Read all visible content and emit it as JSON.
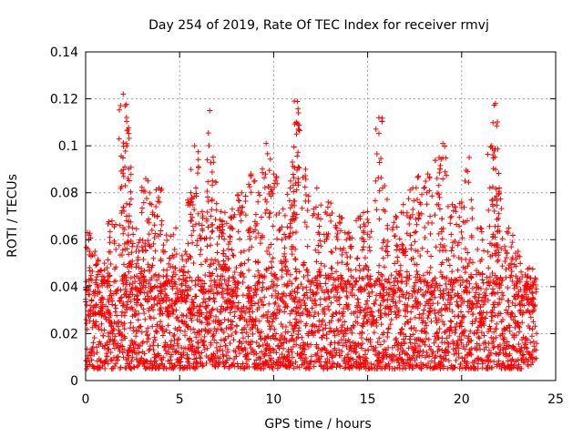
{
  "chart_data": {
    "type": "scatter",
    "title": "Day 254 of 2019, Rate Of TEC Index for receiver rmvj",
    "xlabel": "GPS time / hours",
    "ylabel": "ROTI / TECUs",
    "xlim": [
      0,
      25
    ],
    "ylim": [
      0,
      0.14
    ],
    "grid": true,
    "marker": "+",
    "color": "#ff0000",
    "x_ticks": [
      {
        "value": 0,
        "label": "0"
      },
      {
        "value": 5,
        "label": "5"
      },
      {
        "value": 10,
        "label": "10"
      },
      {
        "value": 15,
        "label": "15"
      },
      {
        "value": 20,
        "label": "20"
      },
      {
        "value": 25,
        "label": "25"
      }
    ],
    "y_ticks": [
      {
        "value": 0,
        "label": "0"
      },
      {
        "value": 0.02,
        "label": "0.02"
      },
      {
        "value": 0.04,
        "label": "0.04"
      },
      {
        "value": 0.06,
        "label": "0.06"
      },
      {
        "value": 0.08,
        "label": "0.08"
      },
      {
        "value": 0.1,
        "label": "0.1"
      },
      {
        "value": 0.12,
        "label": "0.12"
      },
      {
        "value": 0.14,
        "label": "0.14"
      }
    ],
    "series": [
      {
        "name": "ROTI",
        "x_range": [
          0,
          24
        ],
        "baseline_band": [
          0.005,
          0.045
        ],
        "peaks": [
          {
            "x": 0.1,
            "y": 0.063
          },
          {
            "x": 0.5,
            "y": 0.055
          },
          {
            "x": 1.0,
            "y": 0.05
          },
          {
            "x": 1.4,
            "y": 0.068
          },
          {
            "x": 2.0,
            "y": 0.122
          },
          {
            "x": 2.1,
            "y": 0.117
          },
          {
            "x": 2.2,
            "y": 0.1
          },
          {
            "x": 2.5,
            "y": 0.065
          },
          {
            "x": 2.9,
            "y": 0.06
          },
          {
            "x": 3.2,
            "y": 0.086
          },
          {
            "x": 3.5,
            "y": 0.075
          },
          {
            "x": 3.9,
            "y": 0.082
          },
          {
            "x": 4.3,
            "y": 0.062
          },
          {
            "x": 4.8,
            "y": 0.065
          },
          {
            "x": 5.3,
            "y": 0.055
          },
          {
            "x": 5.6,
            "y": 0.08
          },
          {
            "x": 5.8,
            "y": 0.1
          },
          {
            "x": 6.2,
            "y": 0.072
          },
          {
            "x": 6.6,
            "y": 0.115
          },
          {
            "x": 6.8,
            "y": 0.093
          },
          {
            "x": 7.2,
            "y": 0.072
          },
          {
            "x": 7.5,
            "y": 0.067
          },
          {
            "x": 7.8,
            "y": 0.073
          },
          {
            "x": 8.3,
            "y": 0.08
          },
          {
            "x": 8.8,
            "y": 0.088
          },
          {
            "x": 9.2,
            "y": 0.08
          },
          {
            "x": 9.6,
            "y": 0.101
          },
          {
            "x": 10.0,
            "y": 0.088
          },
          {
            "x": 10.5,
            "y": 0.073
          },
          {
            "x": 10.9,
            "y": 0.085
          },
          {
            "x": 11.1,
            "y": 0.119
          },
          {
            "x": 11.2,
            "y": 0.11
          },
          {
            "x": 11.7,
            "y": 0.09
          },
          {
            "x": 12.3,
            "y": 0.082
          },
          {
            "x": 12.9,
            "y": 0.076
          },
          {
            "x": 13.5,
            "y": 0.07
          },
          {
            "x": 14.0,
            "y": 0.063
          },
          {
            "x": 14.6,
            "y": 0.07
          },
          {
            "x": 15.0,
            "y": 0.072
          },
          {
            "x": 15.6,
            "y": 0.112
          },
          {
            "x": 15.9,
            "y": 0.083
          },
          {
            "x": 16.5,
            "y": 0.07
          },
          {
            "x": 16.9,
            "y": 0.075
          },
          {
            "x": 17.4,
            "y": 0.082
          },
          {
            "x": 17.7,
            "y": 0.087
          },
          {
            "x": 18.2,
            "y": 0.088
          },
          {
            "x": 18.8,
            "y": 0.095
          },
          {
            "x": 19.0,
            "y": 0.101
          },
          {
            "x": 19.5,
            "y": 0.075
          },
          {
            "x": 20.0,
            "y": 0.076
          },
          {
            "x": 20.4,
            "y": 0.095
          },
          {
            "x": 21.0,
            "y": 0.065
          },
          {
            "x": 21.6,
            "y": 0.1
          },
          {
            "x": 21.8,
            "y": 0.118
          },
          {
            "x": 22.0,
            "y": 0.082
          },
          {
            "x": 22.5,
            "y": 0.065
          },
          {
            "x": 23.0,
            "y": 0.055
          },
          {
            "x": 23.6,
            "y": 0.048
          }
        ]
      }
    ]
  }
}
